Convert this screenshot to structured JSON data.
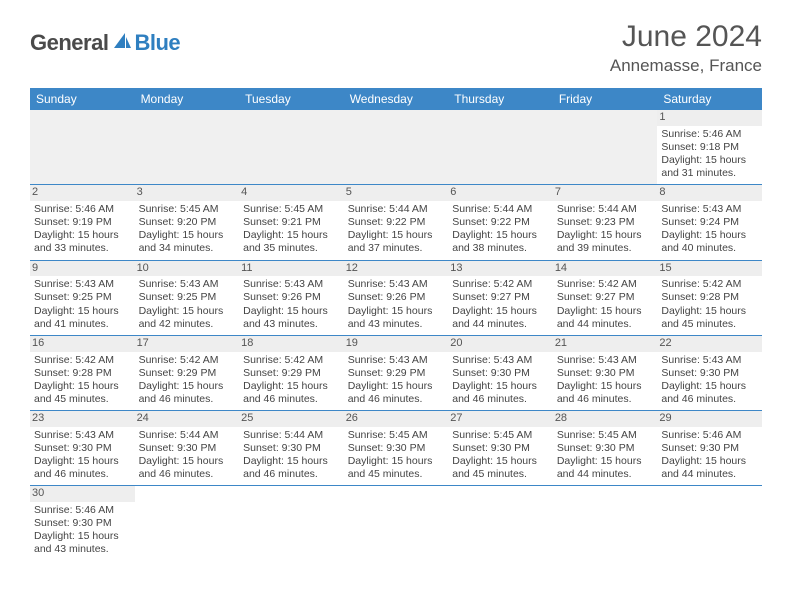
{
  "logo": {
    "text_part1": "General",
    "text_part2": "Blue",
    "color_dark": "#4a4a4a",
    "color_blue": "#2f7fc0"
  },
  "header": {
    "title": "June 2024",
    "location": "Annemasse, France",
    "title_color": "#555555",
    "title_fontsize": 30,
    "location_fontsize": 17
  },
  "calendar": {
    "header_bg": "#3d87c7",
    "header_fg": "#ffffff",
    "border_color": "#3d87c7",
    "daynum_bg": "#eeeeee",
    "empty_bg": "#f0f0f0",
    "cell_fontsize": 10.5,
    "daynames": [
      "Sunday",
      "Monday",
      "Tuesday",
      "Wednesday",
      "Thursday",
      "Friday",
      "Saturday"
    ],
    "weeks": [
      [
        null,
        null,
        null,
        null,
        null,
        null,
        {
          "day": "1",
          "sunrise": "Sunrise: 5:46 AM",
          "sunset": "Sunset: 9:18 PM",
          "daylight1": "Daylight: 15 hours",
          "daylight2": "and 31 minutes."
        }
      ],
      [
        {
          "day": "2",
          "sunrise": "Sunrise: 5:46 AM",
          "sunset": "Sunset: 9:19 PM",
          "daylight1": "Daylight: 15 hours",
          "daylight2": "and 33 minutes."
        },
        {
          "day": "3",
          "sunrise": "Sunrise: 5:45 AM",
          "sunset": "Sunset: 9:20 PM",
          "daylight1": "Daylight: 15 hours",
          "daylight2": "and 34 minutes."
        },
        {
          "day": "4",
          "sunrise": "Sunrise: 5:45 AM",
          "sunset": "Sunset: 9:21 PM",
          "daylight1": "Daylight: 15 hours",
          "daylight2": "and 35 minutes."
        },
        {
          "day": "5",
          "sunrise": "Sunrise: 5:44 AM",
          "sunset": "Sunset: 9:22 PM",
          "daylight1": "Daylight: 15 hours",
          "daylight2": "and 37 minutes."
        },
        {
          "day": "6",
          "sunrise": "Sunrise: 5:44 AM",
          "sunset": "Sunset: 9:22 PM",
          "daylight1": "Daylight: 15 hours",
          "daylight2": "and 38 minutes."
        },
        {
          "day": "7",
          "sunrise": "Sunrise: 5:44 AM",
          "sunset": "Sunset: 9:23 PM",
          "daylight1": "Daylight: 15 hours",
          "daylight2": "and 39 minutes."
        },
        {
          "day": "8",
          "sunrise": "Sunrise: 5:43 AM",
          "sunset": "Sunset: 9:24 PM",
          "daylight1": "Daylight: 15 hours",
          "daylight2": "and 40 minutes."
        }
      ],
      [
        {
          "day": "9",
          "sunrise": "Sunrise: 5:43 AM",
          "sunset": "Sunset: 9:25 PM",
          "daylight1": "Daylight: 15 hours",
          "daylight2": "and 41 minutes."
        },
        {
          "day": "10",
          "sunrise": "Sunrise: 5:43 AM",
          "sunset": "Sunset: 9:25 PM",
          "daylight1": "Daylight: 15 hours",
          "daylight2": "and 42 minutes."
        },
        {
          "day": "11",
          "sunrise": "Sunrise: 5:43 AM",
          "sunset": "Sunset: 9:26 PM",
          "daylight1": "Daylight: 15 hours",
          "daylight2": "and 43 minutes."
        },
        {
          "day": "12",
          "sunrise": "Sunrise: 5:43 AM",
          "sunset": "Sunset: 9:26 PM",
          "daylight1": "Daylight: 15 hours",
          "daylight2": "and 43 minutes."
        },
        {
          "day": "13",
          "sunrise": "Sunrise: 5:42 AM",
          "sunset": "Sunset: 9:27 PM",
          "daylight1": "Daylight: 15 hours",
          "daylight2": "and 44 minutes."
        },
        {
          "day": "14",
          "sunrise": "Sunrise: 5:42 AM",
          "sunset": "Sunset: 9:27 PM",
          "daylight1": "Daylight: 15 hours",
          "daylight2": "and 44 minutes."
        },
        {
          "day": "15",
          "sunrise": "Sunrise: 5:42 AM",
          "sunset": "Sunset: 9:28 PM",
          "daylight1": "Daylight: 15 hours",
          "daylight2": "and 45 minutes."
        }
      ],
      [
        {
          "day": "16",
          "sunrise": "Sunrise: 5:42 AM",
          "sunset": "Sunset: 9:28 PM",
          "daylight1": "Daylight: 15 hours",
          "daylight2": "and 45 minutes."
        },
        {
          "day": "17",
          "sunrise": "Sunrise: 5:42 AM",
          "sunset": "Sunset: 9:29 PM",
          "daylight1": "Daylight: 15 hours",
          "daylight2": "and 46 minutes."
        },
        {
          "day": "18",
          "sunrise": "Sunrise: 5:42 AM",
          "sunset": "Sunset: 9:29 PM",
          "daylight1": "Daylight: 15 hours",
          "daylight2": "and 46 minutes."
        },
        {
          "day": "19",
          "sunrise": "Sunrise: 5:43 AM",
          "sunset": "Sunset: 9:29 PM",
          "daylight1": "Daylight: 15 hours",
          "daylight2": "and 46 minutes."
        },
        {
          "day": "20",
          "sunrise": "Sunrise: 5:43 AM",
          "sunset": "Sunset: 9:30 PM",
          "daylight1": "Daylight: 15 hours",
          "daylight2": "and 46 minutes."
        },
        {
          "day": "21",
          "sunrise": "Sunrise: 5:43 AM",
          "sunset": "Sunset: 9:30 PM",
          "daylight1": "Daylight: 15 hours",
          "daylight2": "and 46 minutes."
        },
        {
          "day": "22",
          "sunrise": "Sunrise: 5:43 AM",
          "sunset": "Sunset: 9:30 PM",
          "daylight1": "Daylight: 15 hours",
          "daylight2": "and 46 minutes."
        }
      ],
      [
        {
          "day": "23",
          "sunrise": "Sunrise: 5:43 AM",
          "sunset": "Sunset: 9:30 PM",
          "daylight1": "Daylight: 15 hours",
          "daylight2": "and 46 minutes."
        },
        {
          "day": "24",
          "sunrise": "Sunrise: 5:44 AM",
          "sunset": "Sunset: 9:30 PM",
          "daylight1": "Daylight: 15 hours",
          "daylight2": "and 46 minutes."
        },
        {
          "day": "25",
          "sunrise": "Sunrise: 5:44 AM",
          "sunset": "Sunset: 9:30 PM",
          "daylight1": "Daylight: 15 hours",
          "daylight2": "and 46 minutes."
        },
        {
          "day": "26",
          "sunrise": "Sunrise: 5:45 AM",
          "sunset": "Sunset: 9:30 PM",
          "daylight1": "Daylight: 15 hours",
          "daylight2": "and 45 minutes."
        },
        {
          "day": "27",
          "sunrise": "Sunrise: 5:45 AM",
          "sunset": "Sunset: 9:30 PM",
          "daylight1": "Daylight: 15 hours",
          "daylight2": "and 45 minutes."
        },
        {
          "day": "28",
          "sunrise": "Sunrise: 5:45 AM",
          "sunset": "Sunset: 9:30 PM",
          "daylight1": "Daylight: 15 hours",
          "daylight2": "and 44 minutes."
        },
        {
          "day": "29",
          "sunrise": "Sunrise: 5:46 AM",
          "sunset": "Sunset: 9:30 PM",
          "daylight1": "Daylight: 15 hours",
          "daylight2": "and 44 minutes."
        }
      ],
      [
        {
          "day": "30",
          "sunrise": "Sunrise: 5:46 AM",
          "sunset": "Sunset: 9:30 PM",
          "daylight1": "Daylight: 15 hours",
          "daylight2": "and 43 minutes."
        },
        null,
        null,
        null,
        null,
        null,
        null
      ]
    ]
  }
}
